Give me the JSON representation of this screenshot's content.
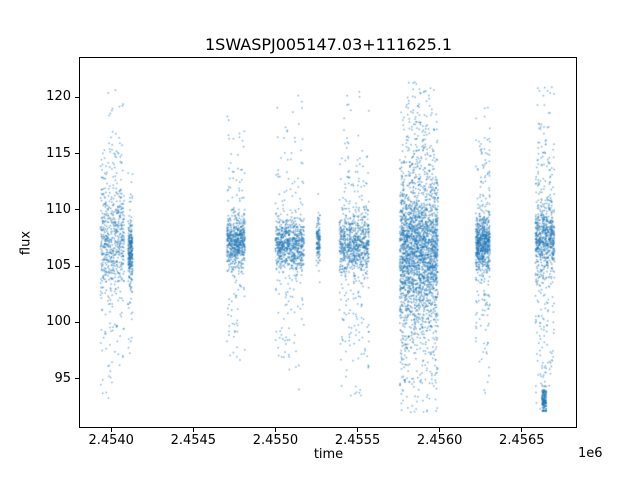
{
  "chart_data": {
    "type": "scatter",
    "title": "1SWASPJ005147.03+111625.1",
    "xlabel": "time",
    "ylabel": "flux",
    "x_offset_label": "1e6",
    "xlim": [
      2453810,
      2456830
    ],
    "ylim": [
      90.7,
      123.5
    ],
    "grid": false,
    "legend": null,
    "x_ticks": [
      {
        "value": 2454000,
        "label": "2.4540"
      },
      {
        "value": 2454500,
        "label": "2.4545"
      },
      {
        "value": 2455000,
        "label": "2.4550"
      },
      {
        "value": 2455500,
        "label": "2.4555"
      },
      {
        "value": 2456000,
        "label": "2.4560"
      },
      {
        "value": 2456500,
        "label": "2.4565"
      }
    ],
    "y_ticks": [
      {
        "value": 95,
        "label": "95"
      },
      {
        "value": 100,
        "label": "100"
      },
      {
        "value": 105,
        "label": "105"
      },
      {
        "value": 110,
        "label": "110"
      },
      {
        "value": 115,
        "label": "115"
      },
      {
        "value": 120,
        "label": "120"
      }
    ],
    "marker": {
      "color": "#1f77b4",
      "alpha": 0.55,
      "size": 1.5
    },
    "seed": 42,
    "clusters": [
      {
        "x_range": [
          2453930,
          2454075
        ],
        "n": 650,
        "core_mean": 107.3,
        "core_sd": 2.3,
        "core_frac": 0.62,
        "tail_sd": 7.5,
        "y_range": [
          93.0,
          121.3
        ]
      },
      {
        "x_range": [
          2454098,
          2454126
        ],
        "n": 280,
        "core_mean": 106.4,
        "core_sd": 1.3,
        "core_frac": 0.85,
        "tail_sd": 4.5,
        "y_range": [
          93.0,
          113.5
        ]
      },
      {
        "x_range": [
          2454700,
          2454810
        ],
        "n": 650,
        "core_mean": 107.2,
        "core_sd": 1.1,
        "core_frac": 0.78,
        "tail_sd": 6.0,
        "y_range": [
          95.5,
          119.5
        ]
      },
      {
        "x_range": [
          2454995,
          2455170
        ],
        "n": 800,
        "core_mean": 106.9,
        "core_sd": 1.1,
        "core_frac": 0.76,
        "tail_sd": 6.5,
        "y_range": [
          94.0,
          121.0
        ]
      },
      {
        "x_range": [
          2455245,
          2455268
        ],
        "n": 130,
        "core_mean": 107.4,
        "core_sd": 0.9,
        "core_frac": 0.92,
        "tail_sd": 3.0,
        "y_range": [
          101.0,
          112.5
        ]
      },
      {
        "x_range": [
          2455385,
          2455565
        ],
        "n": 850,
        "core_mean": 106.9,
        "core_sd": 1.3,
        "core_frac": 0.72,
        "tail_sd": 7.0,
        "y_range": [
          93.5,
          121.3
        ]
      },
      {
        "x_range": [
          2455752,
          2455985
        ],
        "n": 2600,
        "core_mean": 106.3,
        "core_sd": 2.6,
        "core_frac": 0.55,
        "tail_sd": 8.2,
        "y_range": [
          92.0,
          121.5
        ]
      },
      {
        "x_range": [
          2456215,
          2456302
        ],
        "n": 750,
        "core_mean": 107.0,
        "core_sd": 1.2,
        "core_frac": 0.75,
        "tail_sd": 6.5,
        "y_range": [
          93.0,
          121.0
        ]
      },
      {
        "x_range": [
          2456578,
          2456695
        ],
        "n": 800,
        "core_mean": 107.6,
        "core_sd": 1.6,
        "core_frac": 0.66,
        "tail_sd": 7.0,
        "y_range": [
          92.3,
          121.0
        ]
      },
      {
        "x_range": [
          2456618,
          2456645
        ],
        "n": 170,
        "core_mean": 93.0,
        "core_sd": 0.6,
        "core_frac": 0.9,
        "tail_sd": 2.0,
        "y_range": [
          92.2,
          96.5
        ]
      }
    ]
  }
}
